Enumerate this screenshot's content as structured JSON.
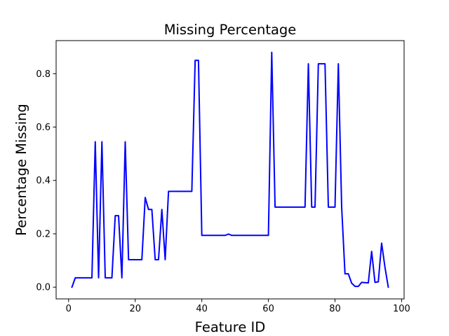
{
  "chart_data": {
    "type": "line",
    "title": "Missing Percentage",
    "xlabel": "Feature ID",
    "ylabel": "Percentage Missing",
    "xlim": [
      -3.75,
      100.75
    ],
    "ylim": [
      -0.044,
      0.924
    ],
    "xticks": [
      0,
      20,
      40,
      60,
      80,
      100
    ],
    "yticks": [
      0.0,
      0.2,
      0.4,
      0.6,
      0.8
    ],
    "xtick_labels": [
      "0",
      "20",
      "40",
      "60",
      "80",
      "100"
    ],
    "ytick_labels": [
      "0.0",
      "0.2",
      "0.4",
      "0.6",
      "0.8"
    ],
    "grid": false,
    "series": [
      {
        "color": "#0000ff",
        "x": [
          1,
          2,
          3,
          4,
          5,
          6,
          7,
          8,
          9,
          10,
          11,
          12,
          13,
          14,
          15,
          16,
          17,
          18,
          19,
          20,
          21,
          22,
          23,
          24,
          25,
          26,
          27,
          28,
          29,
          30,
          31,
          32,
          33,
          34,
          35,
          36,
          37,
          38,
          39,
          40,
          41,
          42,
          43,
          44,
          45,
          46,
          47,
          48,
          49,
          50,
          51,
          52,
          53,
          54,
          55,
          56,
          57,
          58,
          59,
          60,
          61,
          62,
          63,
          64,
          65,
          66,
          67,
          68,
          69,
          70,
          71,
          72,
          73,
          74,
          75,
          76,
          77,
          78,
          79,
          80,
          81,
          82,
          83,
          84,
          85,
          86,
          87,
          88,
          89,
          90,
          91,
          92,
          93,
          94,
          95,
          96
        ],
        "y": [
          0.0,
          0.035,
          0.035,
          0.035,
          0.035,
          0.035,
          0.035,
          0.545,
          0.035,
          0.545,
          0.035,
          0.035,
          0.035,
          0.268,
          0.268,
          0.035,
          0.545,
          0.103,
          0.103,
          0.103,
          0.103,
          0.103,
          0.336,
          0.291,
          0.291,
          0.103,
          0.103,
          0.291,
          0.103,
          0.359,
          0.359,
          0.359,
          0.359,
          0.359,
          0.359,
          0.359,
          0.359,
          0.85,
          0.85,
          0.194,
          0.194,
          0.194,
          0.194,
          0.194,
          0.194,
          0.194,
          0.194,
          0.199,
          0.194,
          0.194,
          0.194,
          0.194,
          0.194,
          0.194,
          0.194,
          0.194,
          0.194,
          0.194,
          0.194,
          0.194,
          0.88,
          0.3,
          0.3,
          0.3,
          0.3,
          0.3,
          0.3,
          0.3,
          0.3,
          0.3,
          0.3,
          0.837,
          0.3,
          0.3,
          0.837,
          0.837,
          0.837,
          0.3,
          0.3,
          0.3,
          0.837,
          0.3,
          0.05,
          0.05,
          0.015,
          0.003,
          0.003,
          0.018,
          0.017,
          0.016,
          0.134,
          0.018,
          0.02,
          0.165,
          0.075,
          0.0
        ]
      }
    ]
  }
}
